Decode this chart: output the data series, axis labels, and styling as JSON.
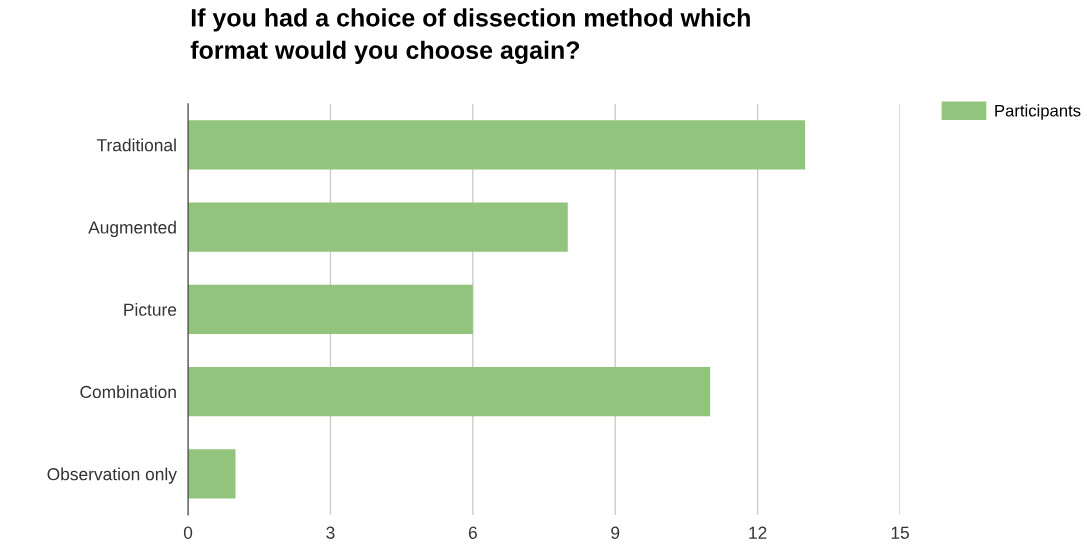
{
  "chart_data": {
    "type": "bar",
    "orientation": "horizontal",
    "title": "If you had a choice of dissection method which\nformat would you choose again?",
    "categories": [
      "Traditional",
      "Augmented",
      "Picture",
      "Combination",
      "Observation only"
    ],
    "series": [
      {
        "name": "Participants",
        "color": "#93c47d",
        "values": [
          13,
          8,
          6,
          11,
          1
        ]
      }
    ],
    "xlim": [
      0,
      15
    ],
    "xticks": [
      0,
      3,
      6,
      9,
      12,
      15
    ],
    "grid": "x",
    "legend": "top right"
  }
}
